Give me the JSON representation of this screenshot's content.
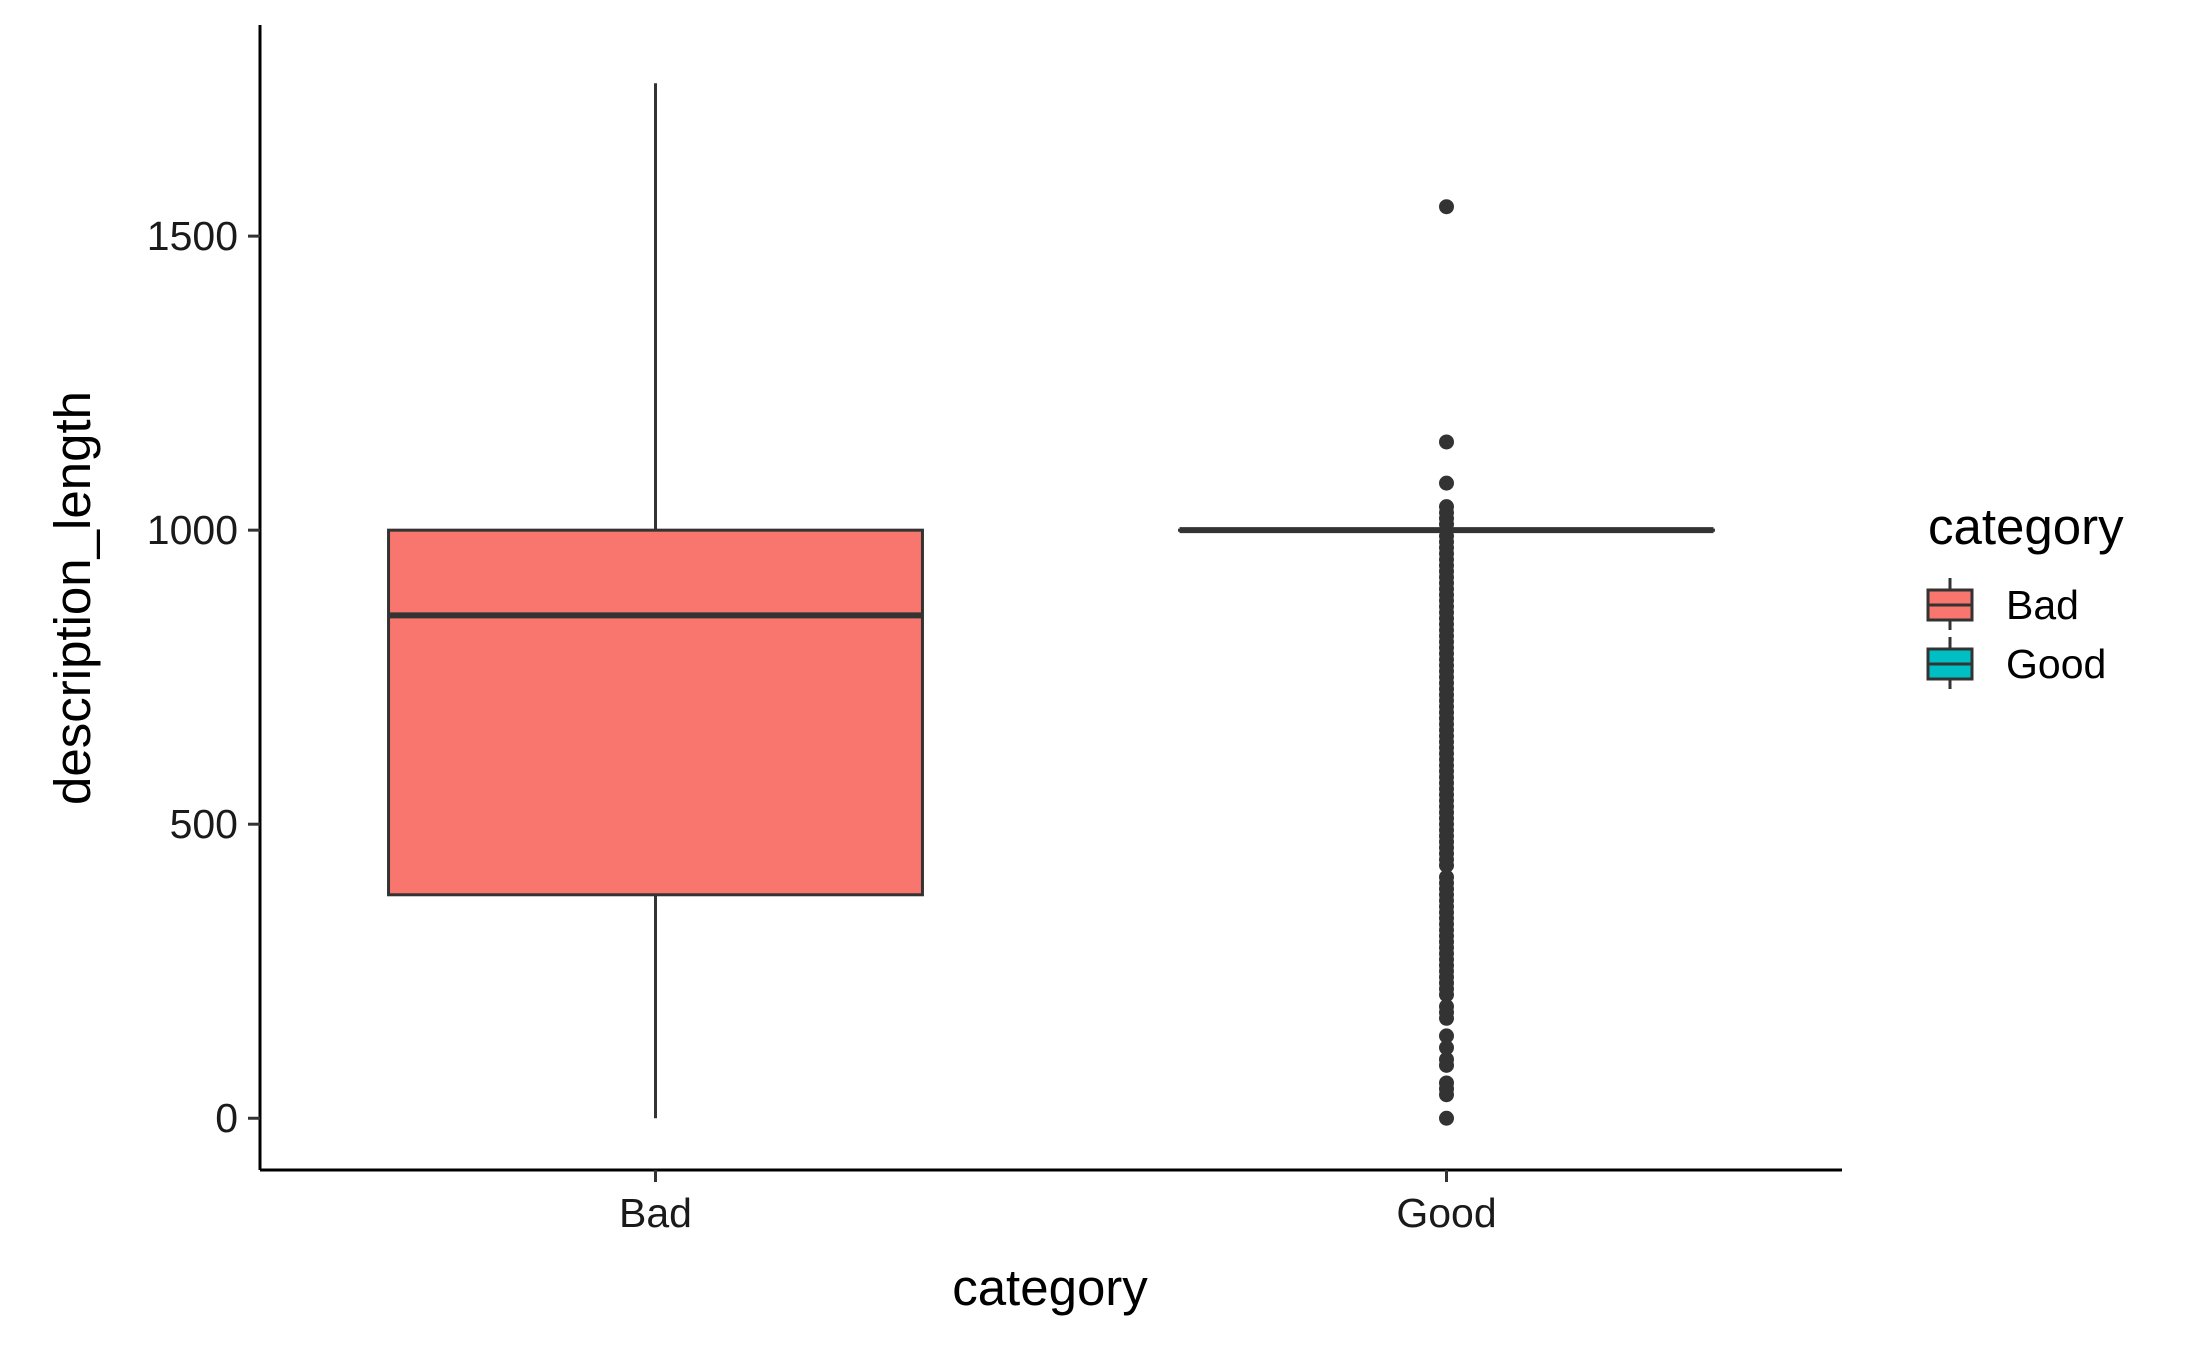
{
  "chart_data": {
    "type": "box",
    "xlabel": "category",
    "ylabel": "description_length",
    "ylim": [
      -88,
      1859
    ],
    "yticks": [
      0,
      500,
      1000,
      1500
    ],
    "categories": [
      "Bad",
      "Good"
    ],
    "boxes": [
      {
        "category": "Bad",
        "fill": "#F8766D",
        "whisker_low": 0,
        "q1": 380,
        "median": 855,
        "q3": 1000,
        "whisker_high": 1760,
        "outliers": []
      },
      {
        "category": "Good",
        "fill": "#00BFC4",
        "whisker_low": 1000,
        "q1": 1000,
        "median": 1000,
        "q3": 1000,
        "whisker_high": 1000,
        "outliers": [
          1550,
          1150,
          1080,
          1040,
          1030,
          1020,
          1010,
          990,
          980,
          970,
          960,
          950,
          940,
          930,
          920,
          910,
          900,
          890,
          880,
          870,
          860,
          850,
          840,
          830,
          820,
          810,
          800,
          790,
          780,
          770,
          760,
          750,
          740,
          730,
          720,
          710,
          700,
          690,
          680,
          670,
          660,
          650,
          640,
          630,
          620,
          610,
          600,
          590,
          580,
          570,
          560,
          550,
          540,
          530,
          520,
          510,
          500,
          490,
          480,
          470,
          460,
          450,
          440,
          430,
          410,
          400,
          390,
          380,
          370,
          360,
          350,
          340,
          330,
          320,
          310,
          300,
          290,
          280,
          270,
          260,
          250,
          240,
          230,
          220,
          210,
          190,
          180,
          170,
          140,
          120,
          100,
          90,
          60,
          50,
          40,
          0
        ]
      }
    ],
    "legend": {
      "title": "category",
      "position": "right",
      "entries": [
        {
          "label": "Bad",
          "color": "#F8766D"
        },
        {
          "label": "Good",
          "color": "#00BFC4"
        }
      ]
    },
    "grid": false
  }
}
